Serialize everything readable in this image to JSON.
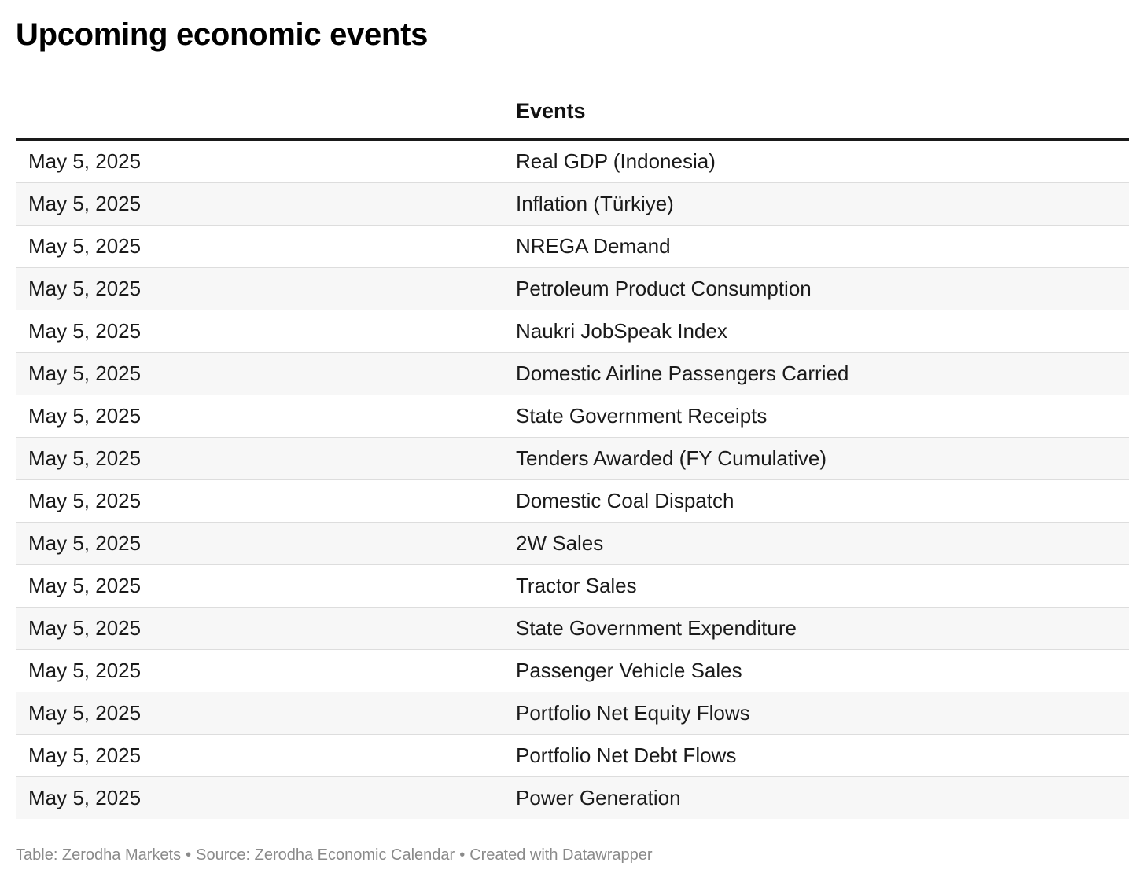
{
  "title": "Upcoming economic events",
  "table": {
    "headers": [
      "",
      "Events"
    ],
    "rows": [
      {
        "date": "May 5, 2025",
        "event": "Real GDP (Indonesia)"
      },
      {
        "date": "May 5, 2025",
        "event": "Inflation (Türkiye)"
      },
      {
        "date": "May 5, 2025",
        "event": "NREGA Demand"
      },
      {
        "date": "May 5, 2025",
        "event": "Petroleum Product Consumption"
      },
      {
        "date": "May 5, 2025",
        "event": "Naukri JobSpeak Index"
      },
      {
        "date": "May 5, 2025",
        "event": "Domestic Airline Passengers Carried"
      },
      {
        "date": "May 5, 2025",
        "event": "State Government Receipts"
      },
      {
        "date": "May 5, 2025",
        "event": "Tenders Awarded (FY Cumulative)"
      },
      {
        "date": "May 5, 2025",
        "event": "Domestic Coal Dispatch"
      },
      {
        "date": "May 5, 2025",
        "event": "2W Sales"
      },
      {
        "date": "May 5, 2025",
        "event": "Tractor Sales"
      },
      {
        "date": "May 5, 2025",
        "event": "State Government Expenditure"
      },
      {
        "date": "May 5, 2025",
        "event": "Passenger Vehicle Sales"
      },
      {
        "date": "May 5, 2025",
        "event": "Portfolio Net Equity Flows"
      },
      {
        "date": "May 5, 2025",
        "event": "Portfolio Net Debt Flows"
      },
      {
        "date": "May 5, 2025",
        "event": "Power Generation"
      }
    ]
  },
  "footer": {
    "table_credit": "Table: Zerodha Markets",
    "source": "Source: Zerodha Economic Calendar",
    "created_with": "Created with Datawrapper",
    "separator": "•"
  },
  "colors": {
    "title": "#000000",
    "text": "#1a1a1a",
    "stripe": "#f7f7f7",
    "row_border": "#dddddd",
    "footer_text": "#8a8a8a"
  }
}
